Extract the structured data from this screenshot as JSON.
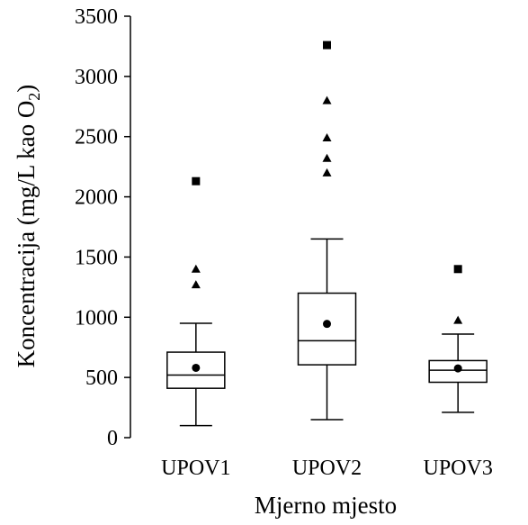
{
  "chart_data": {
    "type": "box",
    "title": "",
    "xlabel": "Mjerno mjesto",
    "ylabel": {
      "main": "Koncentracija (mg/L kao O",
      "subscript": "2",
      "suffix": ")"
    },
    "ylim": [
      0,
      3500
    ],
    "yticks": [
      0,
      500,
      1000,
      1500,
      2000,
      2500,
      3000,
      3500
    ],
    "categories": [
      "UPOV1",
      "UPOV2",
      "UPOV3"
    ],
    "boxes": [
      {
        "name": "UPOV1",
        "whisker_low": 100,
        "q1": 410,
        "median": 520,
        "q3": 710,
        "whisker_high": 950,
        "mean": 580,
        "outliers": [
          1270,
          1400
        ],
        "extremes": [
          2130
        ]
      },
      {
        "name": "UPOV2",
        "whisker_low": 150,
        "q1": 605,
        "median": 805,
        "q3": 1200,
        "whisker_high": 1650,
        "mean": 945,
        "outliers": [
          2200,
          2320,
          2490,
          2800
        ],
        "extremes": [
          3260
        ]
      },
      {
        "name": "UPOV3",
        "whisker_low": 210,
        "q1": 460,
        "median": 560,
        "q3": 640,
        "whisker_high": 860,
        "mean": 575,
        "outliers": [
          975
        ],
        "extremes": [
          1400
        ]
      }
    ],
    "legend": "none",
    "grid": false,
    "colors": {
      "box_fill": "#ffffff",
      "stroke": "#000000"
    }
  }
}
